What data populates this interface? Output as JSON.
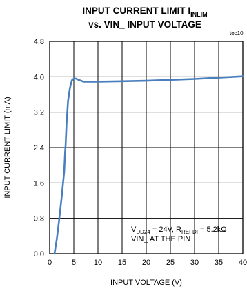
{
  "chart_data": {
    "type": "line",
    "title_main": "INPUT CURRENT LIMIT I",
    "title_sub": "INLIM",
    "title_line2": "vs. VIN_ INPUT VOLTAGE",
    "tag": "toc10",
    "xlabel": "INPUT VOLTAGE (V)",
    "ylabel": "INPUT CURRENT LIMIT (mA)",
    "xlim": [
      0,
      40
    ],
    "ylim": [
      0,
      4.8
    ],
    "x_ticks": [
      0,
      5,
      10,
      15,
      20,
      25,
      30,
      35,
      40
    ],
    "y_ticks": [
      0.0,
      0.8,
      1.6,
      2.4,
      3.2,
      4.0,
      4.8
    ],
    "x_tick_labels": [
      "0",
      "5",
      "10",
      "15",
      "20",
      "25",
      "30",
      "35",
      "40"
    ],
    "y_tick_labels": [
      "0.0",
      "0.8",
      "1.6",
      "2.4",
      "3.2",
      "4.0",
      "4.8"
    ],
    "grid": true,
    "line_color": "#4a7fbf",
    "annotation": {
      "line1": [
        {
          "t": "V",
          "sub": false
        },
        {
          "t": "DD24",
          "sub": true
        },
        {
          "t": " = 24V, R",
          "sub": false
        },
        {
          "t": "REFDI",
          "sub": true
        },
        {
          "t": " = 5.2kΩ",
          "sub": false
        }
      ],
      "line2": "VIN_ AT THE PIN"
    },
    "series": [
      {
        "x": [
          1.0,
          1.5,
          2.0,
          2.5,
          3.0,
          3.2,
          3.3,
          3.5,
          3.8,
          4.2,
          4.6,
          5.0,
          5.4,
          6.0,
          7.0,
          8.0,
          10,
          15,
          20,
          25,
          30,
          35,
          40
        ],
        "y": [
          0.0,
          0.35,
          0.8,
          1.3,
          1.85,
          2.3,
          2.45,
          2.95,
          3.45,
          3.75,
          3.92,
          3.96,
          3.96,
          3.93,
          3.89,
          3.89,
          3.89,
          3.9,
          3.91,
          3.93,
          3.95,
          3.98,
          4.01
        ]
      }
    ]
  }
}
